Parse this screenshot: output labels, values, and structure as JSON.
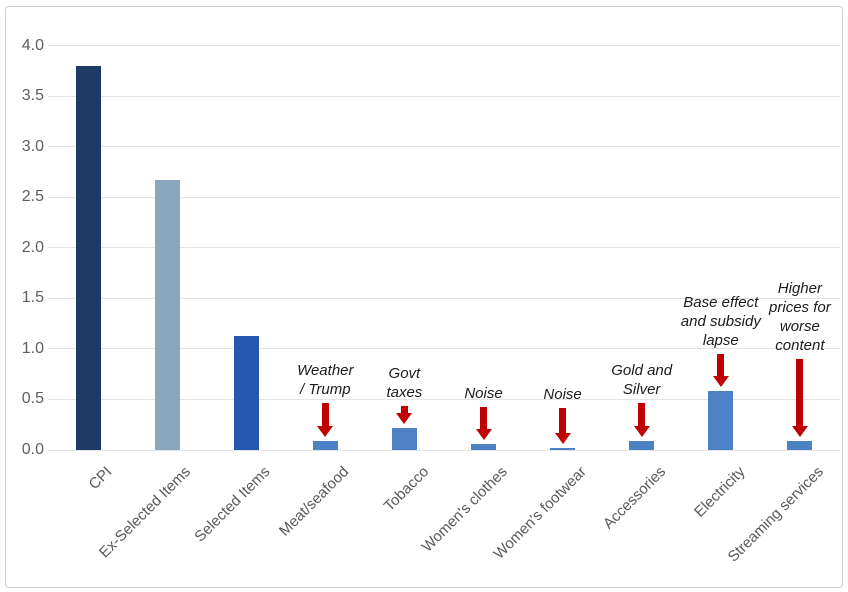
{
  "chart_data": {
    "type": "bar",
    "title": "",
    "xlabel": "",
    "ylabel": "",
    "categories": [
      "CPI",
      "Ex-Selected Items",
      "Selected Items",
      "Meat/seafood",
      "Tobacco",
      "Women's clothes",
      "Women's footwear",
      "Accessories",
      "Electricity",
      "Streaming services"
    ],
    "values": [
      3.8,
      2.67,
      1.13,
      0.09,
      0.22,
      0.06,
      0.02,
      0.09,
      0.58,
      0.09
    ],
    "bar_colors": [
      "#1f3a64",
      "#8aa5bc",
      "#2457ad",
      "#4d80c4",
      "#4d80c4",
      "#4d80c4",
      "#4d80c4",
      "#4d80c4",
      "#4d80c4",
      "#4d80c4"
    ],
    "ylim": [
      0.0,
      4.25
    ],
    "yticks": [
      "0.0",
      "0.5",
      "1.0",
      "1.5",
      "2.0",
      "2.5",
      "3.0",
      "3.5",
      "4.0"
    ],
    "grid": true,
    "legend": "none",
    "annotations": [
      {
        "category": "Meat/seafood",
        "text": "Weather\n/ Trump",
        "arrow": "down",
        "arrow_len": 34
      },
      {
        "category": "Tobacco",
        "text": "Govt\ntaxes",
        "arrow": "down",
        "arrow_len": 18
      },
      {
        "category": "Women's clothes",
        "text": "Noise",
        "arrow": "down",
        "arrow_len": 33
      },
      {
        "category": "Women's footwear",
        "text": "Noise",
        "arrow": "down",
        "arrow_len": 36
      },
      {
        "category": "Accessories",
        "text": "Gold and\nSilver",
        "arrow": "down",
        "arrow_len": 34
      },
      {
        "category": "Electricity",
        "text": "Base effect\nand subsidy\nlapse",
        "arrow": "down",
        "arrow_len": 33
      },
      {
        "category": "Streaming services",
        "text": "Higher\nprices for\nworse\ncontent",
        "arrow": "down",
        "arrow_len": 78
      }
    ],
    "colors": {
      "arrow": "#c00000",
      "grid": "#e4e4e4",
      "axis_text": "#5f5f5f",
      "annotation_text": "#1c1c1c",
      "frame_border": "#cfcfcf",
      "background": "#ffffff"
    }
  }
}
